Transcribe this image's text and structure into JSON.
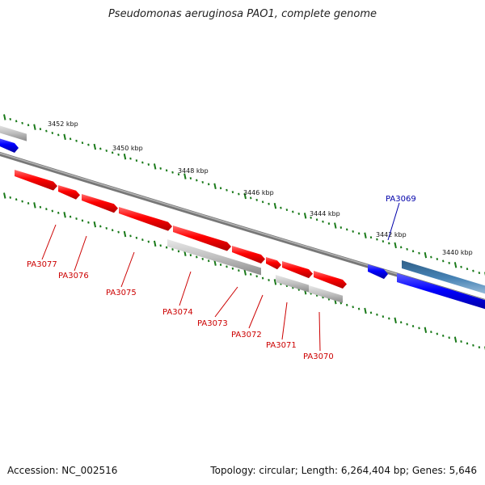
{
  "title": "Pseudomonas aeruginosa PAO1, complete genome",
  "footer": {
    "accession": "Accession: NC_002516",
    "summary": "Topology: circular; Length: 6,264,404 bp; Genes: 5,646"
  },
  "colors": {
    "forward_gene": "#ff0000",
    "reverse_gene_grey": "#c0c0c0",
    "blue_gene": "#0000ff",
    "steelblue_gene": "#4682b4",
    "backbone": "#7a7a7a",
    "tick": "#1a7a1a",
    "red_label": "#cc0000",
    "blue_label": "#0000aa"
  },
  "ticks": [
    {
      "label": "3452 kbp"
    },
    {
      "label": "3450 kbp"
    },
    {
      "label": "3448 kbp"
    },
    {
      "label": "3446 kbp"
    },
    {
      "label": "3444 kbp"
    },
    {
      "label": "3442 kbp"
    },
    {
      "label": "3440 kbp"
    }
  ],
  "gene_labels": [
    {
      "name": "PA3077",
      "color": "red"
    },
    {
      "name": "PA3076",
      "color": "red"
    },
    {
      "name": "PA3075",
      "color": "red"
    },
    {
      "name": "PA3074",
      "color": "red"
    },
    {
      "name": "PA3073",
      "color": "red"
    },
    {
      "name": "PA3072",
      "color": "red"
    },
    {
      "name": "PA3071",
      "color": "red"
    },
    {
      "name": "PA3070",
      "color": "red"
    },
    {
      "name": "PA3069",
      "color": "blue"
    }
  ]
}
